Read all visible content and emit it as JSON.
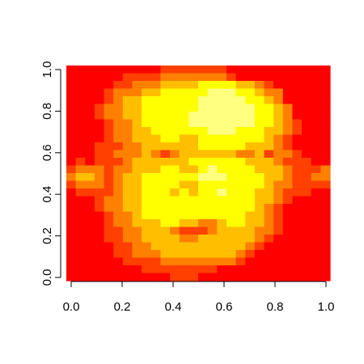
{
  "chart_data": {
    "type": "heatmap",
    "title": "",
    "xlabel": "",
    "ylabel": "",
    "xlim": [
      0,
      1
    ],
    "ylim": [
      0,
      1
    ],
    "grid": false,
    "x_ticks": [
      "0.0",
      "0.2",
      "0.4",
      "0.6",
      "0.8",
      "1.0"
    ],
    "y_ticks": [
      "0.0",
      "0.2",
      "0.4",
      "0.6",
      "0.8",
      "1.0"
    ],
    "colormap": [
      "#ff0000",
      "#ff4000",
      "#ff8000",
      "#ffbf00",
      "#ffff00",
      "#ffff80"
    ],
    "values": [
      "0000000000111111100000000000",
      "0000001111222222210000000000",
      "0000011222333344443321000000",
      "0000122233444445554432200000",
      "0000123344444455555443200000",
      "0001223344444455555544320000",
      "0001223344444555555544320000",
      "0000122344444555555544321000",
      "0000122334444445554443321000",
      "0000122333443344444443210000",
      "0001112233333344444333210000",
      "0001122232123333332231221000",
      "0101112333333444444333211100",
      "1222122333443345444433321112",
      "2332123344444455544443321122",
      "1222123344443344444443221111",
      "0111123344434344544433211100",
      "0001223344444444444433210000",
      "0001223344444444444432100000",
      "0000122344444444444332100000",
      "0000122333443322344332100000",
      "0000112233321112333322100000",
      "0000112233332233333321000000",
      "0000011223333333333210000000",
      "0000011222333333332100000000",
      "0000001111222222221000000000",
      "0000000011111111000000000000",
      "0000000000011100000000000000"
    ]
  },
  "axes": {
    "x_axis_label": "",
    "y_axis_label": ""
  }
}
